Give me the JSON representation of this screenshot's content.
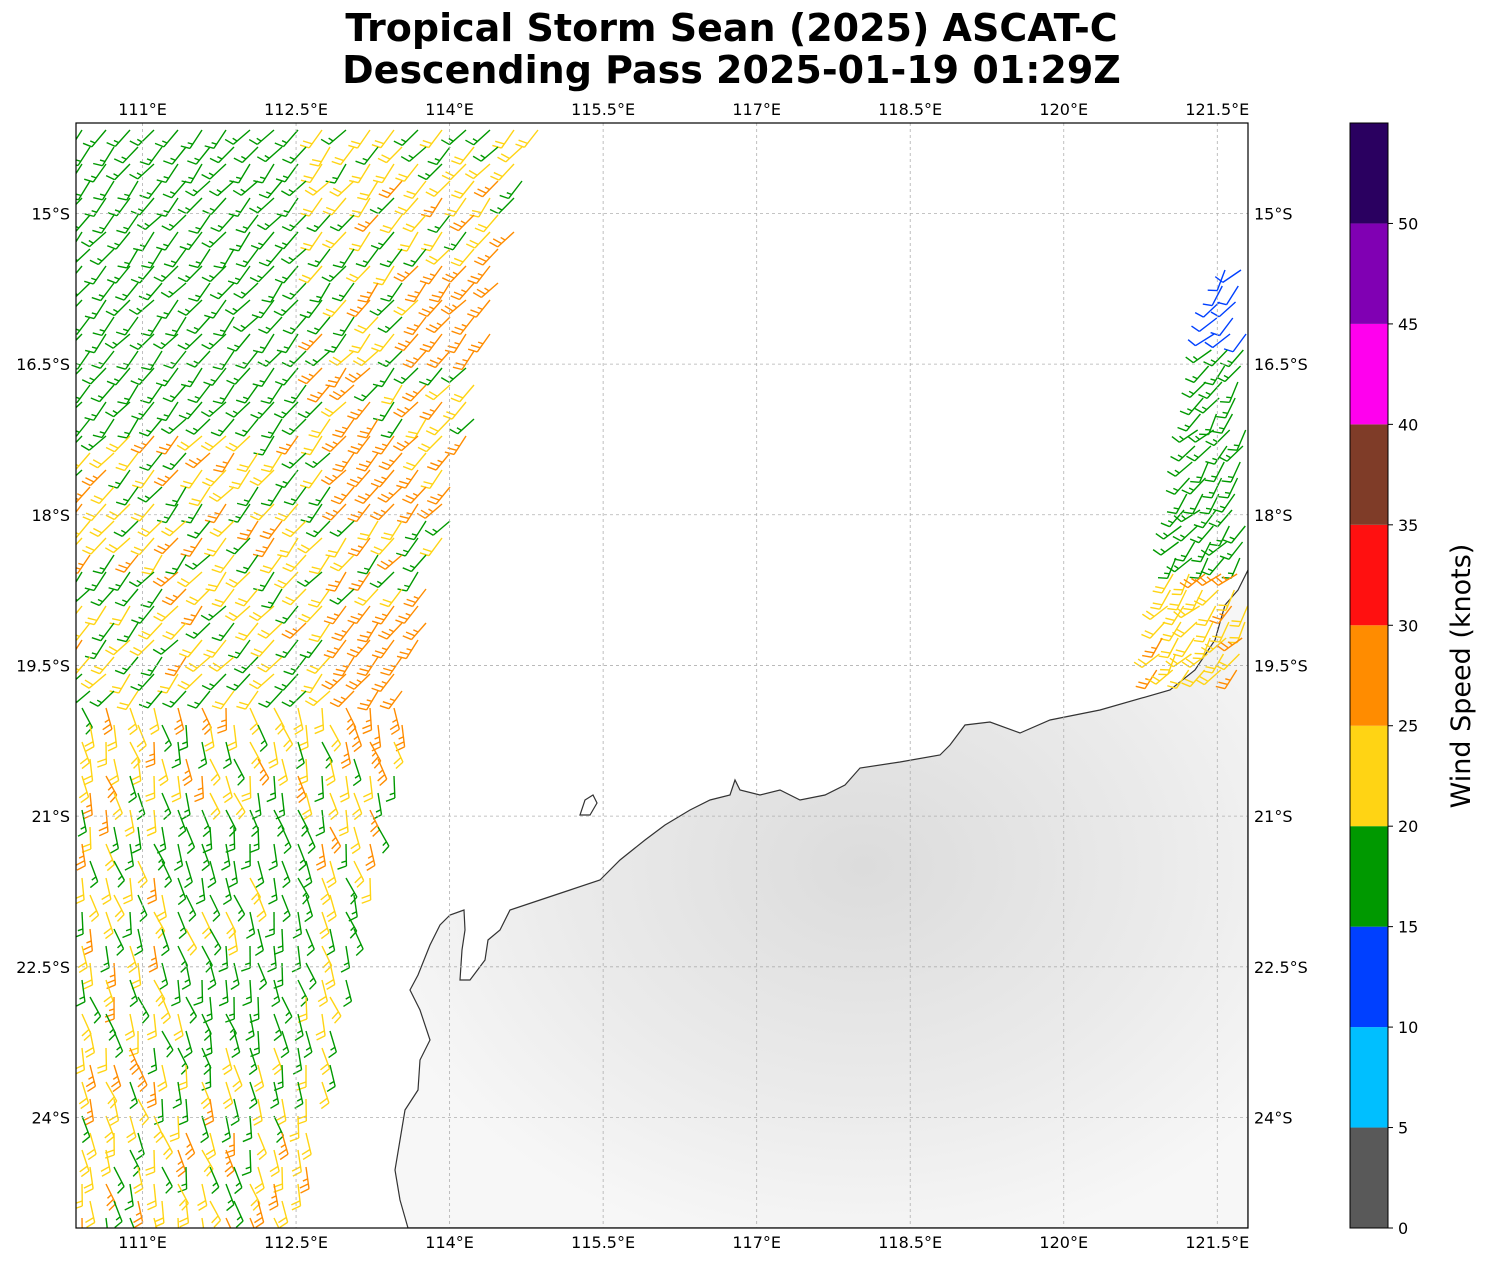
{
  "title": {
    "line1": "Tropical Storm Sean (2025) ASCAT-C",
    "line2": "Descending Pass 2025-01-19 01:29Z"
  },
  "map": {
    "lon_range": [
      110.35,
      121.8
    ],
    "lat_range": [
      -25.1,
      -14.1
    ],
    "lon_ticks": [
      {
        "value": 111,
        "label": "111°E"
      },
      {
        "value": 112.5,
        "label": "112.5°E"
      },
      {
        "value": 114,
        "label": "114°E"
      },
      {
        "value": 115.5,
        "label": "115.5°E"
      },
      {
        "value": 117,
        "label": "117°E"
      },
      {
        "value": 118.5,
        "label": "118.5°E"
      },
      {
        "value": 120,
        "label": "120°E"
      },
      {
        "value": 121.5,
        "label": "121.5°E"
      }
    ],
    "lat_ticks": [
      {
        "value": -15,
        "label": "15°S"
      },
      {
        "value": -16.5,
        "label": "16.5°S"
      },
      {
        "value": -18,
        "label": "18°S"
      },
      {
        "value": -19.5,
        "label": "19.5°S"
      },
      {
        "value": -21,
        "label": "21°S"
      },
      {
        "value": -22.5,
        "label": "22.5°S"
      },
      {
        "value": -24,
        "label": "24°S"
      }
    ],
    "grid": "dashed",
    "coastline_color": "#333333",
    "land_color": "#eeeeee",
    "barb_swaths": [
      {
        "name": "west",
        "lon_min_top": 110.35,
        "lon_max_top": 114.9,
        "lon_max_bottom": 112.5
      },
      {
        "name": "east",
        "lon_min_top": 121.1,
        "lon_max_top": 121.8,
        "lat_bottom": -19.5
      }
    ]
  },
  "colorbar": {
    "label": "Wind Speed (knots)",
    "bins": [
      {
        "min": 0,
        "max": 5,
        "color": "#595959"
      },
      {
        "min": 5,
        "max": 10,
        "color": "#00bfff"
      },
      {
        "min": 10,
        "max": 15,
        "color": "#0040ff"
      },
      {
        "min": 15,
        "max": 20,
        "color": "#009900"
      },
      {
        "min": 20,
        "max": 25,
        "color": "#ffd414"
      },
      {
        "min": 25,
        "max": 30,
        "color": "#ff8c00"
      },
      {
        "min": 30,
        "max": 35,
        "color": "#ff1010"
      },
      {
        "min": 35,
        "max": 40,
        "color": "#7f3c28"
      },
      {
        "min": 40,
        "max": 45,
        "color": "#ff00ee"
      },
      {
        "min": 45,
        "max": 50,
        "color": "#8000b3"
      },
      {
        "min": 50,
        "max": 55,
        "color": "#2a0060"
      }
    ],
    "tick_labels": [
      "0",
      "5",
      "10",
      "15",
      "20",
      "25",
      "30",
      "35",
      "40",
      "45",
      "50"
    ]
  }
}
